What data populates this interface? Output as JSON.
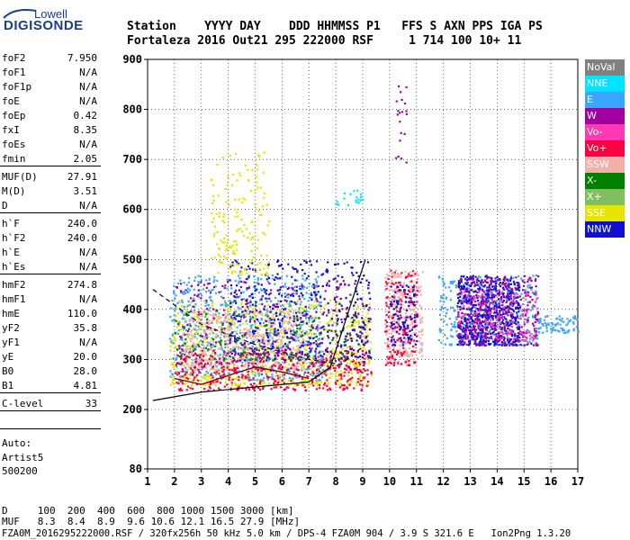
{
  "logo": {
    "line1": "Lowell",
    "line2": "DIGISONDE"
  },
  "header": {
    "row1": "Station    YYYY DAY    DDD HHMMSS P1   FFS S AXN PPS IGA PS",
    "row2": "Fortaleza 2016 Out21 295 222000 RSF     1 714 100 10+ 11"
  },
  "params": [
    {
      "label": "foF2",
      "value": "7.950"
    },
    {
      "label": "foF1",
      "value": "N/A"
    },
    {
      "label": "foF1p",
      "value": "N/A"
    },
    {
      "label": "foE",
      "value": "N/A"
    },
    {
      "label": "foEp",
      "value": "0.42"
    },
    {
      "label": "fxI",
      "value": "8.35"
    },
    {
      "label": "foEs",
      "value": "N/A"
    },
    {
      "label": "fmin",
      "value": "2.05"
    },
    {
      "label": "MUF(D)",
      "value": "27.91"
    },
    {
      "label": "M(D)",
      "value": "3.51"
    },
    {
      "label": "D",
      "value": "N/A"
    },
    {
      "label": "h`F",
      "value": "240.0"
    },
    {
      "label": "h`F2",
      "value": "240.0"
    },
    {
      "label": "h`E",
      "value": "N/A"
    },
    {
      "label": "h`Es",
      "value": "N/A"
    },
    {
      "label": "hmF2",
      "value": "274.8"
    },
    {
      "label": "hmF1",
      "value": "N/A"
    },
    {
      "label": "hmE",
      "value": "110.0"
    },
    {
      "label": "yF2",
      "value": "35.8"
    },
    {
      "label": "yF1",
      "value": "N/A"
    },
    {
      "label": "yE",
      "value": "20.0"
    },
    {
      "label": "B0",
      "value": "28.0"
    },
    {
      "label": "B1",
      "value": "4.81"
    },
    {
      "label": "C-level",
      "value": "33"
    }
  ],
  "auto": {
    "line1": "Auto:",
    "line2": "Artist5",
    "line3": "500200"
  },
  "legend": [
    {
      "label": "NoVal",
      "color": "#808080"
    },
    {
      "label": "NNE",
      "color": "#00e5ff"
    },
    {
      "label": "E",
      "color": "#3aa7ff"
    },
    {
      "label": "W",
      "color": "#a000a0"
    },
    {
      "label": "Vo-",
      "color": "#ff3ab5"
    },
    {
      "label": "Vo+",
      "color": "#ff0040"
    },
    {
      "label": "SSW",
      "color": "#f4b0a8"
    },
    {
      "label": "X-",
      "color": "#008000"
    },
    {
      "label": "X+",
      "color": "#80c060"
    },
    {
      "label": "SSE",
      "color": "#e5e500"
    },
    {
      "label": "NNW",
      "color": "#1010d0"
    }
  ],
  "footer": {
    "row1": "D     100  200  400  600  800 1000 1500 3000 [km]",
    "row2": "MUF   8.3  8.4  8.9  9.6 10.6 12.1 16.5 27.9 [MHz]",
    "row3": "FZA0M_2016295222000.RSF / 320fx256h 50 kHz 5.0 km / DPS-4 FZA0M 904 / 3.9 S 321.6 E   Ion2Png 1.3.20"
  },
  "chart_data": {
    "type": "scatter",
    "xlim": [
      1,
      17
    ],
    "ylim": [
      80,
      900
    ],
    "xticks": [
      1,
      2,
      3,
      4,
      5,
      6,
      7,
      8,
      9,
      10,
      11,
      12,
      13,
      14,
      15,
      16,
      17
    ],
    "yticks": [
      80,
      200,
      300,
      400,
      500,
      600,
      700,
      800,
      900
    ],
    "grid": true,
    "legend_position": "right",
    "clusters": [
      {
        "series": "SSE",
        "x": [
          1.8,
          9.3
        ],
        "y": [
          250,
          420
        ],
        "density": 900
      },
      {
        "series": "E",
        "x": [
          1.8,
          7.5
        ],
        "y": [
          260,
          470
        ],
        "density": 700
      },
      {
        "series": "SSW",
        "x": [
          2.3,
          6.8
        ],
        "y": [
          280,
          400
        ],
        "density": 500
      },
      {
        "series": "Vo+",
        "x": [
          2.0,
          9.3
        ],
        "y": [
          240,
          320
        ],
        "density": 400
      },
      {
        "series": "NNW",
        "x": [
          4.0,
          9.3
        ],
        "y": [
          300,
          500
        ],
        "density": 450
      },
      {
        "series": "W",
        "x": [
          2.0,
          9.3
        ],
        "y": [
          280,
          460
        ],
        "density": 300
      },
      {
        "series": "X-",
        "x": [
          2.0,
          9.0
        ],
        "y": [
          300,
          400
        ],
        "density": 120
      },
      {
        "series": "SSE",
        "x": [
          3.3,
          5.5
        ],
        "y": [
          470,
          720
        ],
        "density": 160
      },
      {
        "series": "NNE",
        "x": [
          7.7,
          9.0
        ],
        "y": [
          610,
          640
        ],
        "density": 20
      },
      {
        "series": "SSW",
        "x": [
          9.8,
          11.2
        ],
        "y": [
          290,
          480
        ],
        "density": 300
      },
      {
        "series": "Vo+",
        "x": [
          9.8,
          11.0
        ],
        "y": [
          290,
          480
        ],
        "density": 160
      },
      {
        "series": "NNW",
        "x": [
          10.0,
          11.0
        ],
        "y": [
          330,
          450
        ],
        "density": 100
      },
      {
        "series": "W",
        "x": [
          10.2,
          10.6
        ],
        "y": [
          690,
          850
        ],
        "density": 20
      },
      {
        "series": "E",
        "x": [
          11.8,
          15.5
        ],
        "y": [
          330,
          470
        ],
        "density": 350
      },
      {
        "series": "NNW",
        "x": [
          12.5,
          14.8
        ],
        "y": [
          330,
          470
        ],
        "density": 600
      },
      {
        "series": "W",
        "x": [
          12.5,
          15.5
        ],
        "y": [
          330,
          470
        ],
        "density": 350
      },
      {
        "series": "Vo-",
        "x": [
          12.5,
          15.5
        ],
        "y": [
          340,
          440
        ],
        "density": 150
      },
      {
        "series": "E",
        "x": [
          15.5,
          17.0
        ],
        "y": [
          355,
          390
        ],
        "density": 80
      }
    ],
    "profile_dashed": {
      "x": [
        1.2,
        3,
        5,
        7,
        8.2,
        9.1
      ],
      "y": [
        440,
        370,
        330,
        300,
        290,
        330
      ]
    },
    "profile_solid": {
      "x": [
        1.2,
        3,
        5,
        7,
        7.8,
        9.1
      ],
      "y": [
        218,
        235,
        245,
        255,
        285,
        500
      ]
    },
    "trace_dark": {
      "x": [
        2,
        3,
        4,
        5,
        6,
        7
      ],
      "y": [
        262,
        250,
        268,
        285,
        275,
        262
      ]
    }
  }
}
